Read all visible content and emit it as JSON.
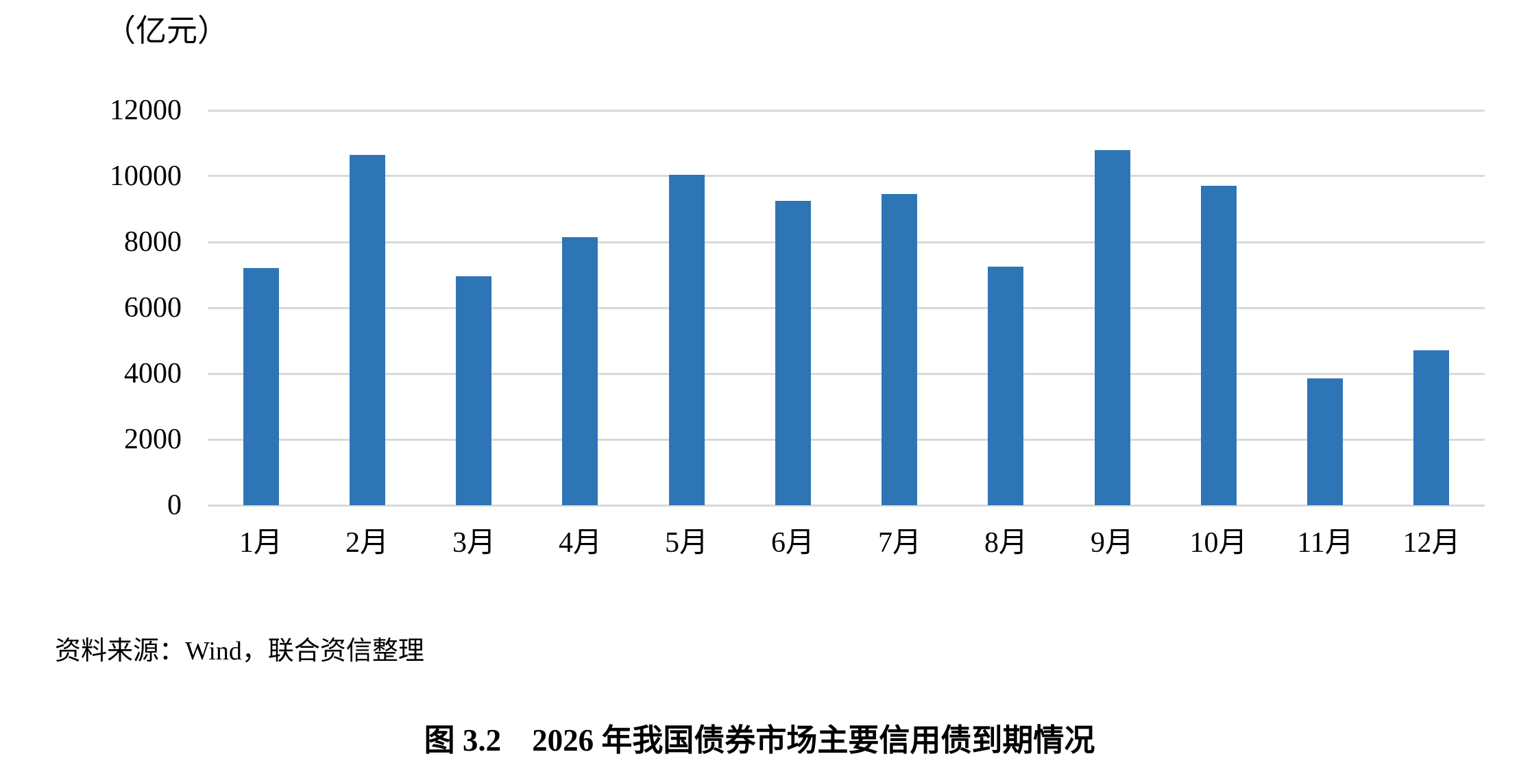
{
  "figure": {
    "unit_label": "（亿元）",
    "source_note": "资料来源：Wind，联合资信整理",
    "caption": "图 3.2　2026 年我国债券市场主要信用债到期情况"
  },
  "chart_data": {
    "type": "bar",
    "title": "图 3.2　2026 年我国债券市场主要信用债到期情况",
    "ylabel": "（亿元）",
    "xlabel": "",
    "categories": [
      "1月",
      "2月",
      "3月",
      "4月",
      "5月",
      "6月",
      "7月",
      "8月",
      "9月",
      "10月",
      "11月",
      "12月"
    ],
    "values": [
      7200,
      10650,
      6950,
      8150,
      10050,
      9250,
      9450,
      7250,
      10800,
      9700,
      3850,
      4700
    ],
    "ylim": [
      0,
      12000
    ],
    "yticks": [
      0,
      2000,
      4000,
      6000,
      8000,
      10000,
      12000
    ],
    "grid": true,
    "legend_position": "none",
    "bar_color": "#2E75B6",
    "gridline_color": "#D9D9D9"
  }
}
